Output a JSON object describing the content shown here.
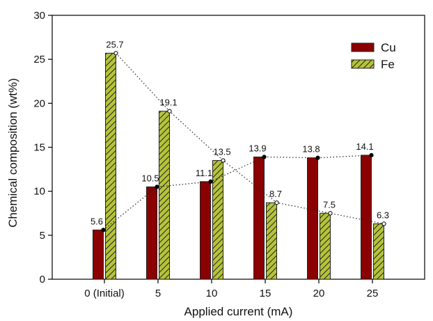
{
  "chart_data": {
    "type": "bar",
    "xlabel": "Applied current (mA)",
    "ylabel": "Chemical composition (wt%)",
    "ylim": [
      0,
      30
    ],
    "yticks": [
      0,
      5,
      10,
      15,
      20,
      25,
      30
    ],
    "categories": [
      "0 (Initial)",
      "5",
      "10",
      "15",
      "20",
      "25"
    ],
    "series": [
      {
        "name": "Cu",
        "color": "#8b0000",
        "pattern": "solid",
        "values": [
          5.6,
          10.5,
          11.1,
          13.9,
          13.8,
          14.1
        ],
        "labels": [
          "5.6",
          "10.5",
          "11.1",
          "13.9",
          "13.8",
          "14.1"
        ],
        "marker": "filled-circle"
      },
      {
        "name": "Fe",
        "color": "#b5c33a",
        "pattern": "diagonal-hatch",
        "values": [
          25.7,
          19.1,
          13.5,
          8.7,
          7.5,
          6.3
        ],
        "labels": [
          "25.7",
          "19.1",
          "13.5",
          "8.7",
          "7.5",
          "6.3"
        ],
        "marker": "open-circle"
      }
    ],
    "legend_position": "top-right",
    "trend_lines": "dotted",
    "grid": false
  }
}
